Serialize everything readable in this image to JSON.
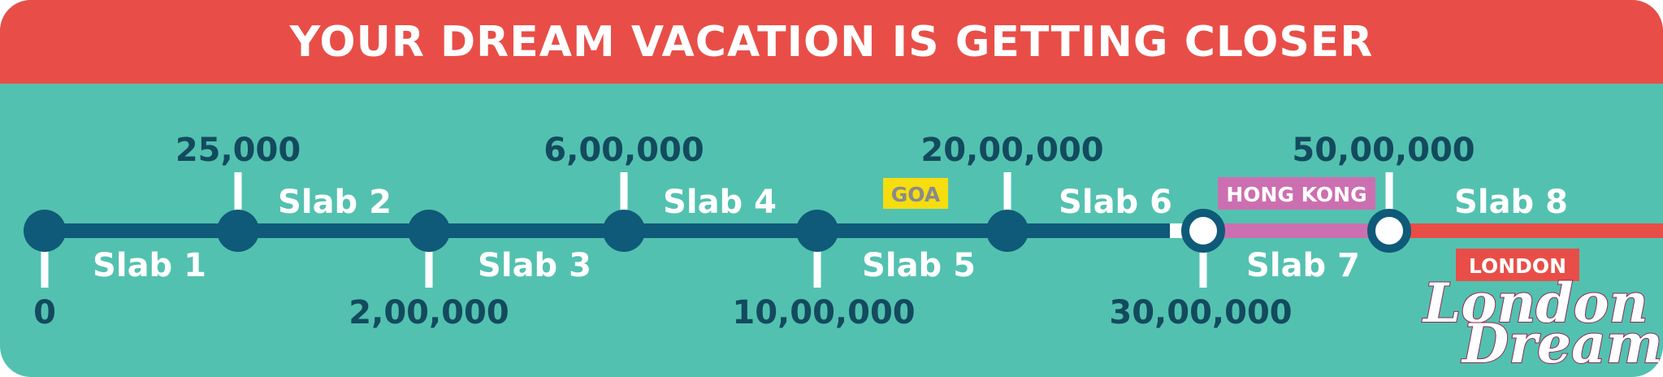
{
  "title": "YOUR DREAM VACATION IS GETTING CLOSER",
  "milestones": [
    "0",
    "25,000",
    "2,00,000",
    "6,00,000",
    "10,00,000",
    "20,00,000",
    "30,00,000",
    "50,00,000"
  ],
  "slabs": [
    "Slab 1",
    "Slab 2",
    "Slab 3",
    "Slab 4",
    "Slab 5",
    "Slab 6",
    "Slab 7",
    "Slab 8"
  ],
  "destinations": {
    "goa": "GOA",
    "hong_kong": "HONG KONG",
    "london": "LONDON"
  },
  "logo": {
    "line1": "London",
    "line2": "Dreamz"
  },
  "colors": {
    "banner": "#e84e47",
    "background": "#53c1b0",
    "track": "#0f5a78",
    "goa": "#f5dd10",
    "hong_kong": "#cc6fb1",
    "london": "#e84e47",
    "text_dark": "#134a5e"
  }
}
